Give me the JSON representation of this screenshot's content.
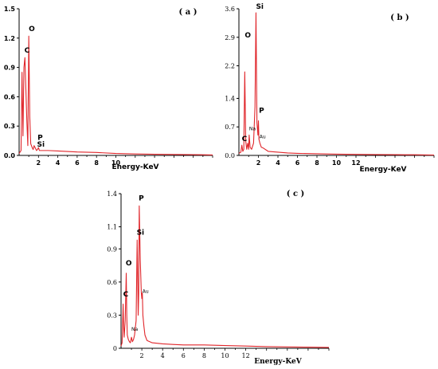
{
  "colors": {
    "spectrum": "#e0262b",
    "axis": "#000000"
  },
  "chart_data": [
    {
      "id": "a",
      "type": "line",
      "title": "( a )",
      "xlabel": "Energy-KeV",
      "ylabel": "",
      "xlim": [
        0,
        20
      ],
      "ylim": [
        0,
        1.5
      ],
      "xticks": [
        2,
        4,
        6,
        8,
        10
      ],
      "yticks": [
        0.0,
        0.3,
        0.6,
        0.9,
        1.2,
        1.5
      ],
      "ytick_labels": [
        "0.0",
        "0.3",
        "0.6",
        "0.9",
        "1.2",
        "1.5"
      ],
      "series": [
        {
          "x": [
            0,
            0.2,
            0.3,
            0.4,
            0.5,
            0.6,
            0.8,
            0.9,
            1.0,
            1.1,
            1.2,
            1.35,
            1.45,
            1.55,
            1.7,
            1.8,
            1.9,
            2.0,
            2.1,
            2.3,
            3,
            4,
            5,
            6,
            8,
            10,
            12,
            14,
            16,
            18,
            20
          ],
          "y": [
            0.02,
            0.05,
            0.85,
            0.2,
            0.9,
            1.0,
            0.35,
            0.1,
            1.22,
            0.4,
            0.12,
            0.08,
            0.06,
            0.1,
            0.07,
            0.05,
            0.06,
            0.08,
            0.05,
            0.05,
            0.05,
            0.045,
            0.04,
            0.035,
            0.03,
            0.02,
            0.015,
            0.012,
            0.01,
            0.008,
            0.005
          ]
        }
      ],
      "annotations": [
        {
          "text": "C",
          "x": 0.55,
          "y": 1.05
        },
        {
          "text": "O",
          "x": 1.0,
          "y": 1.27
        },
        {
          "text": "P",
          "x": 1.9,
          "y": 0.16
        },
        {
          "text": "Si",
          "x": 1.85,
          "y": 0.09
        }
      ]
    },
    {
      "id": "b",
      "type": "line",
      "title": "( b )",
      "xlabel": "Energy-KeV",
      "ylabel": "",
      "xlim": [
        0,
        20
      ],
      "ylim": [
        0,
        3.6
      ],
      "xticks": [
        2,
        4,
        6,
        8,
        10,
        12
      ],
      "yticks": [
        0.0,
        0.7,
        1.4,
        2.2,
        2.9,
        3.6
      ],
      "ytick_labels": [
        "0.0",
        "0.7",
        "1.4",
        "2.2",
        "2.9",
        "3.6"
      ],
      "series": [
        {
          "x": [
            0,
            0.2,
            0.3,
            0.4,
            0.5,
            0.6,
            0.7,
            0.8,
            0.9,
            1.0,
            1.05,
            1.15,
            1.3,
            1.5,
            1.65,
            1.75,
            1.85,
            1.95,
            2.0,
            2.05,
            2.15,
            2.3,
            2.5,
            3,
            4,
            5,
            6,
            8,
            10,
            12,
            14,
            16,
            18,
            20
          ],
          "y": [
            0.05,
            0.08,
            0.25,
            0.1,
            0.15,
            2.05,
            0.35,
            0.15,
            0.3,
            0.15,
            0.5,
            0.2,
            0.15,
            0.3,
            1.2,
            3.5,
            0.8,
            0.5,
            0.85,
            0.4,
            0.3,
            0.2,
            0.18,
            0.1,
            0.08,
            0.06,
            0.05,
            0.04,
            0.03,
            0.025,
            0.02,
            0.018,
            0.015,
            0.01
          ]
        }
      ],
      "annotations": [
        {
          "text": "O",
          "x": 0.6,
          "y": 2.9
        },
        {
          "text": "Si",
          "x": 1.75,
          "y": 3.6
        },
        {
          "text": "P",
          "x": 2.05,
          "y": 1.05
        },
        {
          "text": "Na",
          "x": 1.05,
          "y": 0.62
        },
        {
          "text": "Au",
          "x": 2.1,
          "y": 0.42
        },
        {
          "text": "C",
          "x": 0.3,
          "y": 0.35
        }
      ]
    },
    {
      "id": "c",
      "type": "line",
      "title": "( c )",
      "xlabel": "Energy-KeV",
      "ylabel": "",
      "xlim": [
        0,
        20
      ],
      "ylim": [
        0,
        1.4
      ],
      "xticks": [
        2,
        4,
        6,
        8,
        10,
        12
      ],
      "yticks": [
        0.0,
        0.3,
        0.6,
        0.9,
        1.1,
        1.4
      ],
      "ytick_labels": [
        "0",
        "0.3",
        "0.6",
        "0.9",
        "1.1",
        "1.4"
      ],
      "series": [
        {
          "x": [
            0,
            0.1,
            0.2,
            0.25,
            0.3,
            0.4,
            0.5,
            0.55,
            0.6,
            0.7,
            0.8,
            0.9,
            1.0,
            1.1,
            1.2,
            1.3,
            1.45,
            1.55,
            1.65,
            1.7,
            1.75,
            1.85,
            1.95,
            2.0,
            2.05,
            2.1,
            2.2,
            2.3,
            2.5,
            3,
            4,
            5,
            6,
            8,
            10,
            12,
            14,
            16,
            18,
            20
          ],
          "y": [
            0.02,
            0.05,
            0.4,
            0.2,
            0.1,
            0.25,
            0.68,
            0.3,
            0.12,
            0.08,
            0.06,
            0.05,
            0.1,
            0.06,
            0.08,
            0.12,
            0.25,
            0.98,
            0.3,
            0.5,
            1.29,
            0.8,
            0.5,
            0.45,
            0.5,
            0.3,
            0.2,
            0.12,
            0.07,
            0.05,
            0.04,
            0.035,
            0.03,
            0.03,
            0.025,
            0.02,
            0.015,
            0.012,
            0.01,
            0.008
          ]
        }
      ],
      "annotations": [
        {
          "text": "C",
          "x": 0.2,
          "y": 0.47
        },
        {
          "text": "O",
          "x": 0.45,
          "y": 0.75
        },
        {
          "text": "Si",
          "x": 1.5,
          "y": 1.03
        },
        {
          "text": "P",
          "x": 1.7,
          "y": 1.34
        },
        {
          "text": "Na",
          "x": 1.0,
          "y": 0.16
        },
        {
          "text": "Au",
          "x": 2.05,
          "y": 0.5
        }
      ]
    }
  ]
}
